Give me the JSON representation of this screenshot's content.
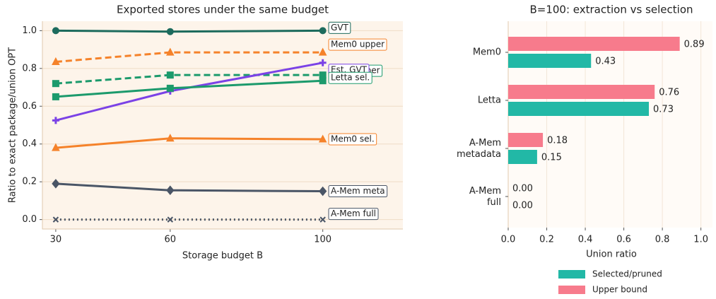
{
  "chart_data": [
    {
      "type": "line",
      "title": "Exported stores under the same budget",
      "xlabel": "Storage budget B",
      "ylabel": "Ratio to exact package/union OPT",
      "x": [
        30,
        60,
        100
      ],
      "xlim": [
        26.5,
        121
      ],
      "xticks": [
        30,
        60,
        100
      ],
      "ylim": [
        -0.05,
        1.05
      ],
      "yticks": [
        {
          "value": 0,
          "label": "0.0"
        },
        {
          "value": 0.2,
          "label": "0.2"
        },
        {
          "value": 0.4,
          "label": "0.4"
        },
        {
          "value": 0.6,
          "label": "0.6"
        },
        {
          "value": 0.8,
          "label": "0.8"
        },
        {
          "value": 1.0,
          "label": "1.0"
        }
      ],
      "grid": true,
      "series": [
        {
          "name": "GVT",
          "color": "#1d6b5d",
          "line": "solid",
          "marker": "circle",
          "values": [
            1.0,
            0.995,
            1.0
          ]
        },
        {
          "name": "Mem0 upper",
          "color": "#f5822a",
          "line": "dashed",
          "marker": "triangle",
          "values": [
            0.835,
            0.885,
            0.885
          ]
        },
        {
          "name": "Letta upper",
          "color": "#1c9a6c",
          "line": "dashed",
          "marker": "square",
          "values": [
            0.72,
            0.765,
            0.765
          ]
        },
        {
          "name": "Est. GVT",
          "color": "#7b42e6",
          "line": "solid",
          "marker": "plus",
          "values": [
            0.525,
            0.68,
            0.83
          ]
        },
        {
          "name": "Letta sel.",
          "color": "#1c9a6c",
          "line": "solid",
          "marker": "square",
          "values": [
            0.65,
            0.695,
            0.735
          ]
        },
        {
          "name": "Mem0 sel.",
          "color": "#f5822a",
          "line": "solid",
          "marker": "triangle",
          "values": [
            0.38,
            0.43,
            0.425
          ]
        },
        {
          "name": "A-Mem meta",
          "color": "#4a5566",
          "line": "solid",
          "marker": "diamond",
          "values": [
            0.19,
            0.155,
            0.15
          ]
        },
        {
          "name": "A-Mem full",
          "color": "#4a5566",
          "line": "dotted",
          "marker": "x",
          "values": [
            0,
            0,
            0
          ]
        }
      ]
    },
    {
      "type": "hbar",
      "title": "B=100: extraction vs selection",
      "xlabel": "Union ratio",
      "categories": [
        "Mem0",
        "Letta",
        "A-Mem metadata",
        "A-Mem full"
      ],
      "xlim": [
        0,
        1.06
      ],
      "xticks": [
        {
          "value": 0,
          "label": "0.0"
        },
        {
          "value": 0.2,
          "label": "0.2"
        },
        {
          "value": 0.4,
          "label": "0.4"
        },
        {
          "value": 0.6,
          "label": "0.6"
        },
        {
          "value": 0.8,
          "label": "0.8"
        },
        {
          "value": 1.0,
          "label": "1.0"
        }
      ],
      "grid": true,
      "series": [
        {
          "name": "Selected/pruned",
          "color": "#22b8a6",
          "values": [
            0.43,
            0.73,
            0.15,
            0
          ],
          "value_labels": [
            "0.43",
            "0.73",
            "0.15",
            "0.00"
          ]
        },
        {
          "name": "Upper bound",
          "color": "#f77b8c",
          "values": [
            0.89,
            0.76,
            0.18,
            0
          ],
          "value_labels": [
            "0.89",
            "0.76",
            "0.18",
            "0.00"
          ]
        }
      ]
    }
  ]
}
